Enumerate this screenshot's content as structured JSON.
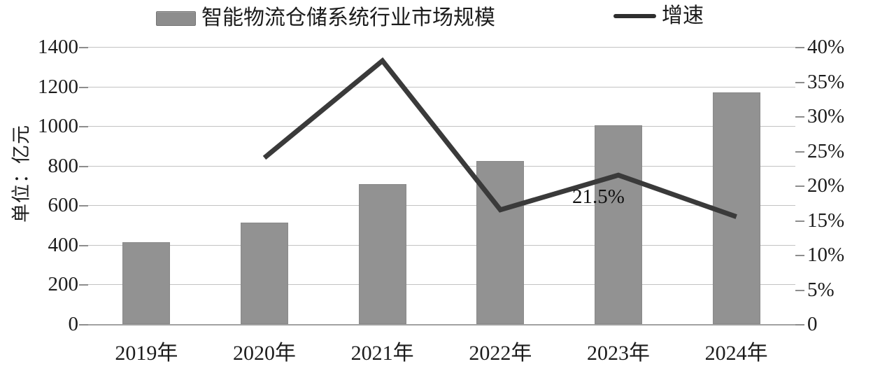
{
  "chart_data": {
    "type": "bar+line combo",
    "categories": [
      "2019年",
      "2020年",
      "2021年",
      "2022年",
      "2023年",
      "2024年"
    ],
    "series": [
      {
        "name": "智能物流仓储系统行业市场规模",
        "type": "bar",
        "axis": "left",
        "values": [
          415,
          512,
          708,
          825,
          1005,
          1170
        ]
      },
      {
        "name": "增速",
        "type": "line",
        "axis": "right",
        "values": [
          null,
          24,
          38,
          16.5,
          21.5,
          15.5
        ]
      }
    ],
    "left_axis": {
      "label": "单位：亿元",
      "min": 0,
      "max": 1400,
      "step": 200,
      "ticks": [
        "1400",
        "1200",
        "1000",
        "800",
        "600",
        "400",
        "200",
        "0"
      ]
    },
    "right_axis": {
      "min": 0,
      "max": 40,
      "step": 5,
      "ticks": [
        "40%",
        "35%",
        "30%",
        "25%",
        "20%",
        "15%",
        "10%",
        "5%",
        "0"
      ]
    },
    "annotation": {
      "text": "21.5%",
      "category_index": 4,
      "value": 21.5
    },
    "legend": [
      {
        "label": "智能物流仓储系统行业市场规模",
        "swatch": "bar"
      },
      {
        "label": "增速",
        "swatch": "line"
      }
    ],
    "layout": {
      "grid": true,
      "legend_position": "top"
    },
    "colors": {
      "bar": "#929292",
      "line": "#3a3a3a",
      "grid": "#c3c3c3",
      "baseline": "#a2a2a2",
      "text": "#1c1c1c"
    }
  }
}
